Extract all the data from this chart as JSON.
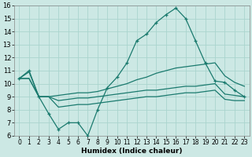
{
  "xlabel": "Humidex (Indice chaleur)",
  "xlim": [
    -0.5,
    23.5
  ],
  "ylim": [
    6,
    16
  ],
  "xticks": [
    0,
    1,
    2,
    3,
    4,
    5,
    6,
    7,
    8,
    9,
    10,
    11,
    12,
    13,
    14,
    15,
    16,
    17,
    18,
    19,
    20,
    21,
    22,
    23
  ],
  "yticks": [
    6,
    7,
    8,
    9,
    10,
    11,
    12,
    13,
    14,
    15,
    16
  ],
  "background_color": "#cce8e4",
  "grid_color": "#aad4ce",
  "line_color": "#1a7a6e",
  "line_max": [
    10.4,
    11.0,
    9.0,
    7.7,
    6.5,
    7.0,
    7.0,
    6.0,
    8.0,
    9.7,
    10.5,
    11.6,
    13.3,
    13.8,
    14.7,
    15.3,
    15.8,
    15.0,
    13.3,
    11.6,
    10.2,
    10.1,
    9.5,
    9.0
  ],
  "line_upper": [
    10.4,
    10.9,
    9.0,
    9.0,
    9.1,
    9.2,
    9.3,
    9.3,
    9.4,
    9.6,
    9.8,
    10.0,
    10.3,
    10.5,
    10.8,
    11.0,
    11.2,
    11.3,
    11.4,
    11.5,
    11.6,
    10.6,
    10.1,
    9.8
  ],
  "line_lower": [
    10.4,
    10.4,
    9.0,
    9.0,
    8.7,
    8.8,
    8.9,
    8.9,
    9.0,
    9.1,
    9.2,
    9.3,
    9.4,
    9.5,
    9.5,
    9.6,
    9.7,
    9.8,
    9.8,
    9.9,
    10.0,
    9.2,
    9.1,
    9.0
  ],
  "line_bot": [
    10.4,
    10.4,
    9.0,
    9.0,
    8.2,
    8.3,
    8.4,
    8.4,
    8.5,
    8.6,
    8.7,
    8.8,
    8.9,
    9.0,
    9.0,
    9.1,
    9.2,
    9.3,
    9.3,
    9.4,
    9.5,
    8.8,
    8.7,
    8.7
  ]
}
